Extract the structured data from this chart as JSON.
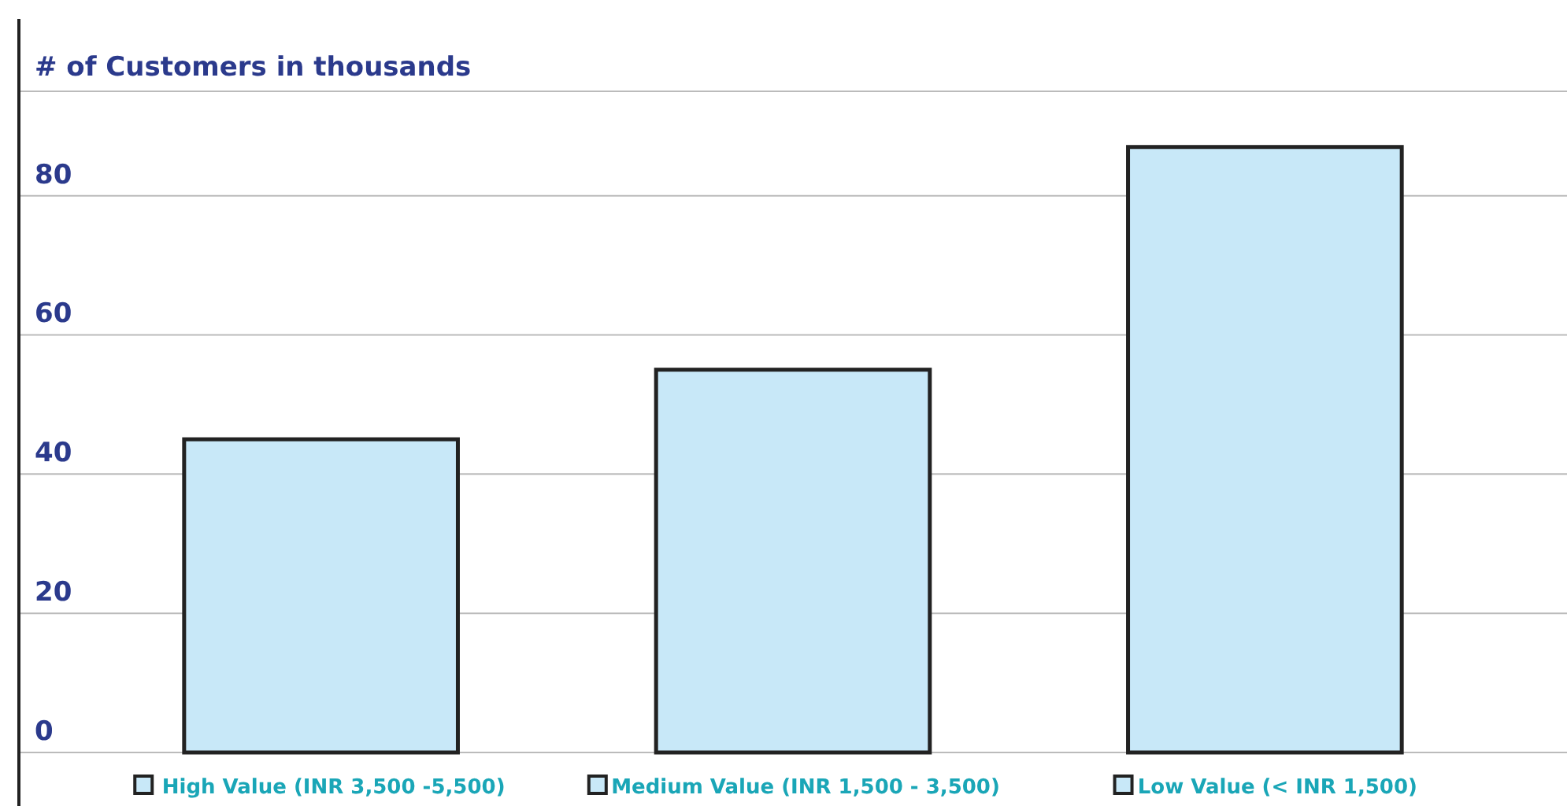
{
  "chart_data": {
    "type": "bar",
    "ylabel": "# of Customers in thousands",
    "categories": [
      "High Value (INR 3,500 -5,500)",
      "Medium Value (INR 1,500 - 3,500)",
      "Low Value (< INR 1,500)"
    ],
    "values": [
      45,
      55,
      87
    ],
    "color": "#c8e8f8",
    "ylim": [
      0,
      95
    ],
    "yticks": [
      0,
      20,
      40,
      60,
      80
    ],
    "grid": "y"
  }
}
